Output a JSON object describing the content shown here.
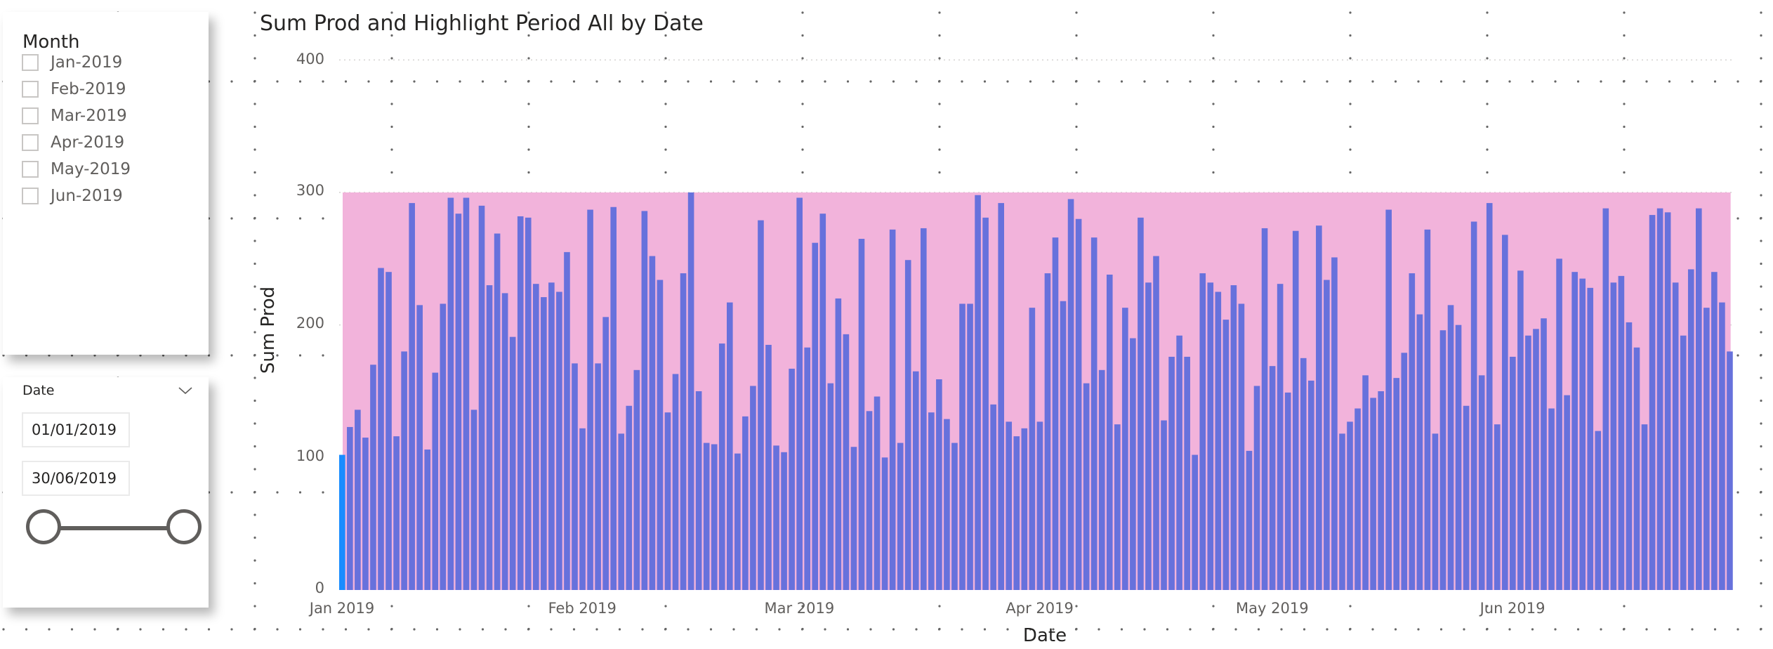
{
  "month_slicer": {
    "title": "Month",
    "items": [
      {
        "label": "Jan-2019",
        "checked": false
      },
      {
        "label": "Feb-2019",
        "checked": false
      },
      {
        "label": "Mar-2019",
        "checked": false
      },
      {
        "label": "Apr-2019",
        "checked": false
      },
      {
        "label": "May-2019",
        "checked": false
      },
      {
        "label": "Jun-2019",
        "checked": false
      }
    ]
  },
  "date_slicer": {
    "title": "Date",
    "chevron_icon": "chevron-down-icon",
    "start_date": "01/01/2019",
    "end_date": "30/06/2019"
  },
  "colors": {
    "bar": "#6771DC",
    "highlight_bar": "#1A8CFF",
    "highlight_period": "#F2B3DB",
    "axis_text": "#605e5c",
    "title_text": "#252423"
  },
  "chart_data": {
    "type": "bar",
    "title": "Sum Prod and Highlight Period All by Date",
    "xlabel": "Date",
    "ylabel": "Sum Prod",
    "ylim": [
      0,
      400
    ],
    "yticks": [
      "0",
      "100",
      "200",
      "300",
      "400"
    ],
    "grid": true,
    "x_tick_labels": [
      {
        "label": "Jan 2019",
        "day_index": 0
      },
      {
        "label": "Feb 2019",
        "day_index": 31
      },
      {
        "label": "Mar 2019",
        "day_index": 59
      },
      {
        "label": "Apr 2019",
        "day_index": 90
      },
      {
        "label": "May 2019",
        "day_index": 120
      },
      {
        "label": "Jun 2019",
        "day_index": 151
      }
    ],
    "x_start": "2019-01-01",
    "x_end": "2019-06-30",
    "series": [
      {
        "name": "Sum Prod",
        "color": "#6771DC",
        "highlighted_points": [
          0,
          180
        ],
        "values": [
          102,
          123,
          136,
          115,
          170,
          243,
          240,
          116,
          180,
          292,
          215,
          106,
          164,
          216,
          296,
          284,
          296,
          136,
          290,
          230,
          269,
          224,
          191,
          282,
          281,
          231,
          221,
          232,
          225,
          255,
          171,
          122,
          287,
          171,
          206,
          289,
          118,
          139,
          166,
          286,
          252,
          234,
          134,
          163,
          239,
          300,
          150,
          111,
          110,
          186,
          217,
          103,
          131,
          154,
          279,
          185,
          109,
          104,
          167,
          296,
          183,
          262,
          284,
          156,
          220,
          193,
          108,
          265,
          135,
          146,
          100,
          272,
          111,
          249,
          165,
          273,
          134,
          159,
          129,
          111,
          216,
          216,
          298,
          281,
          140,
          292,
          127,
          116,
          122,
          213,
          127,
          239,
          266,
          218,
          295,
          280,
          156,
          266,
          166,
          238,
          125,
          213,
          190,
          281,
          232,
          252,
          128,
          176,
          192,
          176,
          102,
          239,
          232,
          225,
          204,
          230,
          216,
          105,
          154,
          273,
          169,
          231,
          149,
          271,
          175,
          158,
          275,
          234,
          251,
          118,
          127,
          137,
          162,
          145,
          150,
          287,
          160,
          179,
          239,
          208,
          272,
          118,
          196,
          215,
          200,
          139,
          278,
          162,
          292,
          125,
          268,
          176,
          241,
          192,
          197,
          205,
          137,
          250,
          147,
          240,
          235,
          228,
          120,
          288,
          232,
          237,
          202,
          183,
          125,
          283,
          288,
          285,
          232,
          192,
          242,
          288,
          213,
          240,
          217,
          180
        ]
      },
      {
        "name": "Highlight Period All",
        "color": "#F2B3DB",
        "type": "area",
        "value": 300,
        "range": [
          "2019-01-01",
          "2019-06-30"
        ]
      }
    ]
  }
}
